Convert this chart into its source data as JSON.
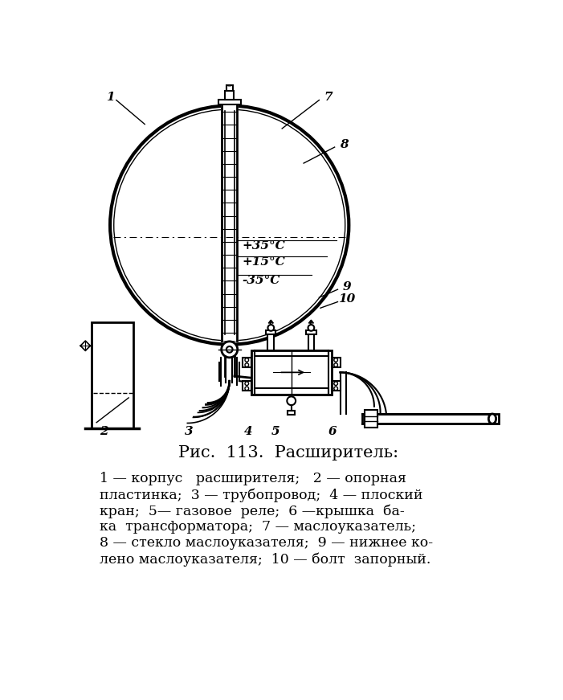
{
  "title": "Рис.  113.  Расширитель:",
  "caption_lines": [
    "1 — корпус   расширителя;   2 — опорная",
    "пластинка;  3 — трубопровод;  4 — плоский",
    "кран;  5— газовое  реле;  6 —крышка  ба-",
    "ка  трансформатора;  7 — маслоуказатель;",
    "8 — стекло маслоуказателя;  9 — нижнее ко-",
    "лено маслоуказателя;  10 — болт  запорный."
  ],
  "bg_color": "#ffffff",
  "line_color": "#000000",
  "title_fontsize": 15,
  "caption_fontsize": 12.5
}
